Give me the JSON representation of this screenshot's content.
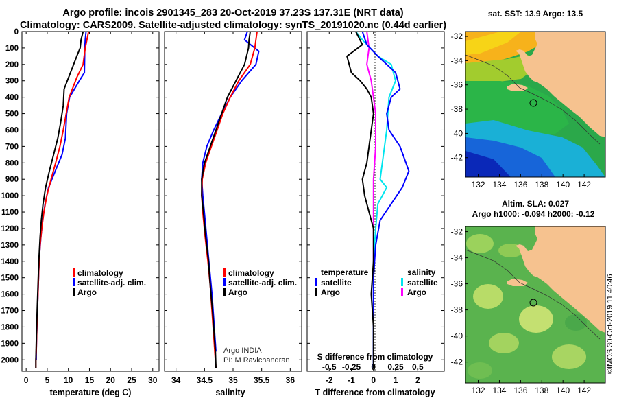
{
  "header": {
    "title_line1": "Argo profile: incois 2901345_283 20-Oct-2019 37.23S 137.31E (NRT data)",
    "title_line2": "Climatology: CARS2009. Satellite-adjusted climatology: synTS_20191020.nc (0.44d earlier)"
  },
  "colors": {
    "argo": "#000000",
    "climatology": "#ff0000",
    "satellite": "#0000ff",
    "sal_satellite": "#00e5ee",
    "sal_argo": "#ff00ff",
    "land": "#f6c28f"
  },
  "chart_data": [
    {
      "type": "line",
      "panel": "temperature",
      "xlabel": "temperature (deg C)",
      "ylabel": "",
      "xlim": [
        -1,
        31.5
      ],
      "xticks": [
        "0",
        "5",
        "10",
        "15",
        "20",
        "25",
        "30"
      ],
      "xtick_values": [
        0,
        5,
        10,
        15,
        20,
        25,
        30
      ],
      "ylim": [
        0,
        2070
      ],
      "yticks": [
        "0",
        "100",
        "200",
        "300",
        "400",
        "500",
        "600",
        "700",
        "800",
        "900",
        "1000",
        "1100",
        "1200",
        "1300",
        "1400",
        "1500",
        "1600",
        "1700",
        "1800",
        "1900",
        "2000"
      ],
      "ytick_values": [
        0,
        100,
        200,
        300,
        400,
        500,
        600,
        700,
        800,
        900,
        1000,
        1100,
        1200,
        1300,
        1400,
        1500,
        1600,
        1700,
        1800,
        1900,
        2000
      ],
      "y_inverted": true,
      "grid": false,
      "legend_position": "bottom-center",
      "series": [
        {
          "name": "Argo",
          "x": [
            13.5,
            13.0,
            12.8,
            12.0,
            10.5,
            9.0,
            8.8,
            8.2,
            7.5,
            6.5,
            5.5,
            4.6,
            4.0,
            3.6,
            3.3,
            3.0,
            2.8,
            2.6,
            2.5,
            2.4,
            2.3,
            2.3
          ],
          "y": [
            0,
            50,
            100,
            150,
            250,
            350,
            450,
            550,
            650,
            750,
            850,
            950,
            1050,
            1150,
            1250,
            1400,
            1550,
            1700,
            1800,
            1900,
            2000,
            2050
          ]
        },
        {
          "name": "climatology",
          "x": [
            14.8,
            14.4,
            14.0,
            13.5,
            12.0,
            10.2,
            9.5,
            8.8,
            8.0,
            7.0,
            5.9,
            4.9,
            4.2,
            3.7,
            3.3,
            3.0,
            2.8,
            2.6,
            2.5,
            2.4,
            2.3,
            2.3
          ],
          "y": [
            0,
            50,
            100,
            200,
            280,
            400,
            500,
            600,
            700,
            800,
            900,
            1000,
            1100,
            1200,
            1300,
            1450,
            1600,
            1750,
            1850,
            1950,
            2000,
            2050
          ]
        },
        {
          "name": "satellite-adj. clim.",
          "x": [
            14.2,
            14.0,
            13.9,
            13.8,
            12.6,
            10.3,
            9.6,
            9.3,
            8.5,
            6.9,
            5.3,
            4.5,
            3.9,
            3.5,
            3.2,
            3.0,
            2.8,
            2.6,
            2.5,
            2.4,
            2.4
          ],
          "y": [
            0,
            50,
            100,
            250,
            300,
            400,
            500,
            650,
            750,
            850,
            950,
            1050,
            1150,
            1250,
            1350,
            1450,
            1600,
            1750,
            1850,
            1950,
            2000
          ]
        }
      ]
    },
    {
      "type": "line",
      "panel": "salinity",
      "xlabel": "salinity",
      "ylabel": "",
      "xlim": [
        33.8,
        36.2
      ],
      "xticks": [
        "34",
        "34.5",
        "35",
        "35.5",
        "36"
      ],
      "xtick_values": [
        34,
        34.5,
        35,
        35.5,
        36
      ],
      "ylim": [
        0,
        2070
      ],
      "y_inverted": true,
      "grid": false,
      "legend_position": "bottom-center",
      "annotations": [
        "Argo INDIA",
        "PI: M Ravichandran"
      ],
      "series": [
        {
          "name": "Argo",
          "x": [
            35.3,
            35.28,
            35.27,
            35.2,
            35.05,
            34.9,
            34.8,
            34.7,
            34.6,
            34.5,
            34.45,
            34.45,
            34.48,
            34.52,
            34.57,
            34.6,
            34.64,
            34.67,
            34.69,
            34.7
          ],
          "y": [
            0,
            50,
            100,
            200,
            300,
            400,
            500,
            600,
            700,
            800,
            900,
            1000,
            1100,
            1250,
            1400,
            1550,
            1700,
            1850,
            1950,
            2050
          ]
        },
        {
          "name": "climatology",
          "x": [
            35.42,
            35.4,
            35.38,
            35.3,
            35.1,
            34.95,
            34.82,
            34.72,
            34.62,
            34.52,
            34.46,
            34.45,
            34.47,
            34.51,
            34.56,
            34.6,
            34.63,
            34.66,
            34.68,
            34.7
          ],
          "y": [
            0,
            50,
            100,
            200,
            300,
            400,
            500,
            600,
            700,
            800,
            900,
            1000,
            1100,
            1250,
            1400,
            1550,
            1700,
            1850,
            1950,
            2050
          ]
        },
        {
          "name": "satellite-adj. clim.",
          "x": [
            35.25,
            35.2,
            35.45,
            35.4,
            35.15,
            34.95,
            34.8,
            34.66,
            34.54,
            34.47,
            34.45,
            34.47,
            34.51,
            34.55,
            34.59,
            34.63,
            34.66,
            34.68,
            34.7
          ],
          "y": [
            0,
            50,
            120,
            200,
            300,
            400,
            500,
            600,
            700,
            800,
            900,
            1000,
            1150,
            1300,
            1450,
            1600,
            1750,
            1850,
            1950
          ]
        }
      ]
    },
    {
      "type": "line",
      "panel": "difference",
      "xlabel": "T difference from climatology",
      "xlabel_top": "S difference from climatology",
      "ylabel": "",
      "xlim": [
        -3,
        3.2
      ],
      "xticks": [
        "-2",
        "-1",
        "0",
        "1",
        "2"
      ],
      "xtick_values": [
        -2,
        -1,
        0,
        1,
        2
      ],
      "xticks_top": [
        "-0.5",
        "-0.25",
        "0",
        "0.25",
        "0.5"
      ],
      "xtick_top_values": [
        -0.5,
        -0.25,
        0,
        0.25,
        0.5
      ],
      "ylim": [
        0,
        2070
      ],
      "y_inverted": true,
      "grid": false,
      "zero_line": true,
      "legend_position": "bottom",
      "legend_groups": [
        "temperature",
        "salinity"
      ],
      "series": [
        {
          "name": "temperature Argo",
          "x": [
            -0.8,
            -0.5,
            -1.2,
            -1.0,
            -0.6,
            -0.3,
            -0.1,
            0.0,
            -0.2,
            -0.3,
            -0.5,
            -0.4,
            -0.2,
            0.0,
            0.0,
            -0.1,
            0.0,
            0.0,
            0.0
          ],
          "y": [
            0,
            80,
            150,
            250,
            300,
            350,
            400,
            500,
            700,
            800,
            900,
            1000,
            1100,
            1200,
            1400,
            1600,
            1800,
            1950,
            2050
          ]
        },
        {
          "name": "temperature satellite",
          "x": [
            -0.5,
            -0.3,
            0.2,
            1.0,
            1.1,
            1.2,
            0.8,
            0.6,
            0.7,
            1.2,
            1.6,
            1.3,
            0.8,
            0.3,
            0.1,
            0.0,
            0.0,
            0.0
          ],
          "y": [
            0,
            80,
            150,
            250,
            300,
            350,
            400,
            500,
            600,
            700,
            850,
            950,
            1050,
            1150,
            1300,
            1500,
            1800,
            2050
          ]
        },
        {
          "name": "salinity satellite",
          "x": [
            -0.8,
            -0.5,
            0.2,
            0.8,
            1.0,
            0.7,
            0.6,
            0.4,
            0.3,
            0.6,
            0.2,
            0.1,
            0.0,
            0.0,
            0.0
          ],
          "y": [
            0,
            50,
            150,
            200,
            300,
            400,
            600,
            800,
            900,
            950,
            1050,
            1200,
            1400,
            1700,
            2050
          ]
        },
        {
          "name": "salinity Argo",
          "x": [
            -0.3,
            -0.2,
            -0.3,
            -0.1,
            0.0,
            0.1,
            0.1,
            0.0,
            0.0,
            0.0,
            0.0
          ],
          "y": [
            0,
            100,
            200,
            300,
            400,
            500,
            700,
            900,
            1200,
            1600,
            2050
          ]
        }
      ]
    },
    {
      "type": "heatmap",
      "panel": "sst-map",
      "title": "sat. SST: 13.9 Argo: 13.5",
      "xticks": [
        "132",
        "134",
        "136",
        "138",
        "140",
        "142"
      ],
      "xtick_values": [
        132,
        134,
        136,
        138,
        140,
        142
      ],
      "yticks": [
        "-32",
        "-34",
        "-36",
        "-38",
        "-40",
        "-42"
      ],
      "ytick_values": [
        -32,
        -34,
        -36,
        -38,
        -40,
        -42
      ],
      "xlim": [
        130.8,
        144
      ],
      "ylim": [
        -43.6,
        -31.6
      ],
      "marker": {
        "lon": 137.31,
        "lat": -37.23
      }
    },
    {
      "type": "heatmap",
      "panel": "sla-map",
      "title_line1": "Altim. SLA: 0.027",
      "title_line2": "Argo h1000: -0.094 h2000: -0.12",
      "xticks": [
        "132",
        "134",
        "136",
        "138",
        "140",
        "142"
      ],
      "xtick_values": [
        132,
        134,
        136,
        138,
        140,
        142
      ],
      "yticks": [
        "-32",
        "-34",
        "-36",
        "-38",
        "-40",
        "-42"
      ],
      "ytick_values": [
        -32,
        -34,
        -36,
        -38,
        -40,
        -42
      ],
      "xlim": [
        130.8,
        144
      ],
      "ylim": [
        -43.6,
        -31.6
      ],
      "marker": {
        "lon": 137.31,
        "lat": -37.23
      }
    }
  ],
  "legend": {
    "items": [
      "climatology",
      "satellite-adj. clim.",
      "Argo"
    ],
    "diff_temperature_heading": "temperature",
    "diff_salinity_heading": "salinity",
    "diff_items": [
      "satellite",
      "Argo"
    ]
  },
  "credit": "©IMOS 30-Oct-2019 11:40:46"
}
